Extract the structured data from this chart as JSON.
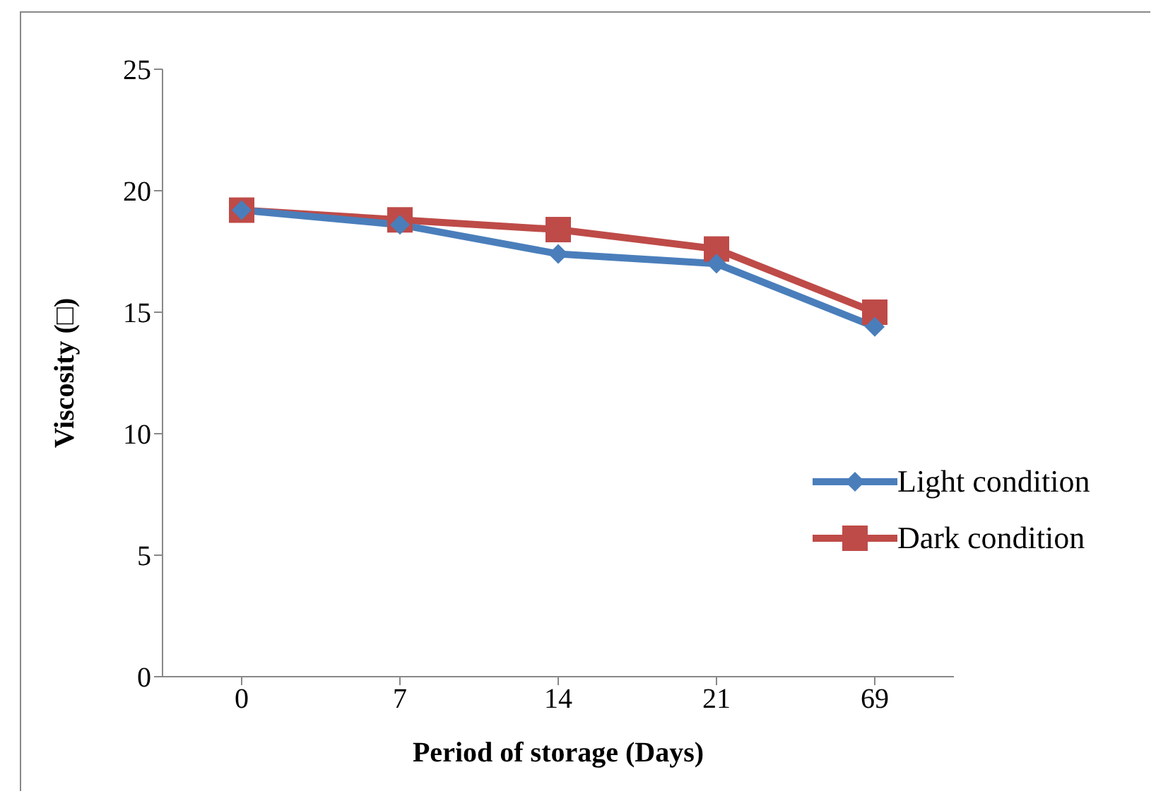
{
  "chart_data": {
    "type": "line",
    "xlabel": "Period of storage (Days)",
    "ylabel": "Viscosity (□)",
    "categories": [
      "0",
      "7",
      "14",
      "21",
      "69"
    ],
    "series": [
      {
        "name": "Light condition",
        "color": "#4a7ebb",
        "marker": "diamond",
        "values": [
          19.2,
          18.6,
          17.4,
          17.0,
          14.4
        ]
      },
      {
        "name": "Dark condition",
        "color": "#be4b48",
        "marker": "square",
        "values": [
          19.2,
          18.8,
          18.4,
          17.6,
          15.0
        ]
      }
    ],
    "ylim": [
      0,
      25
    ],
    "yticks": [
      0,
      5,
      10,
      15,
      20,
      25
    ],
    "grid": false,
    "legend": "right"
  }
}
